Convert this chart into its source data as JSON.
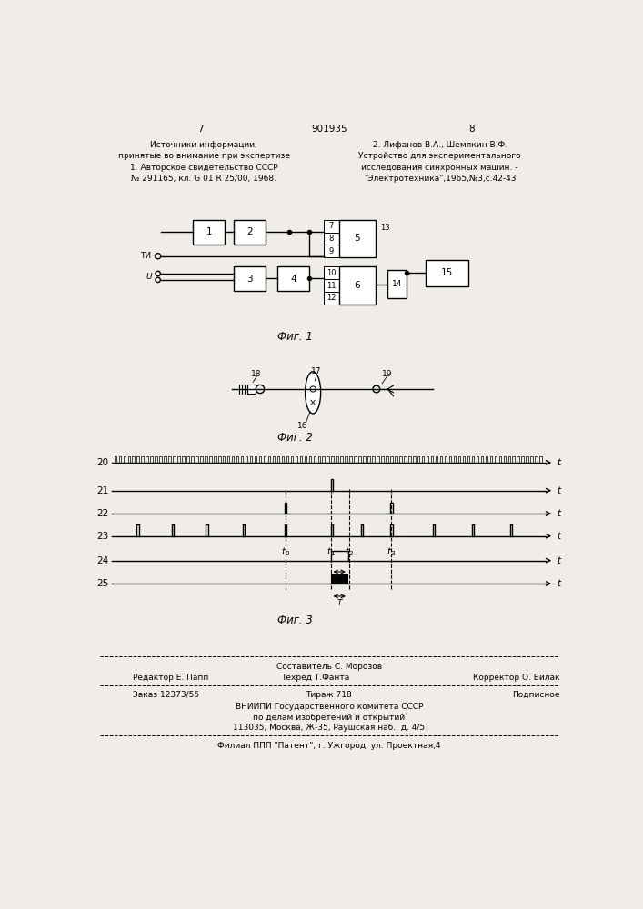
{
  "bg_color": "#f0ede8",
  "page_num_left": "7",
  "page_num_center": "901935",
  "page_num_right": "8",
  "header_left": "Источники информации,\nпринятые во внимание при экспертизе\n1. Авторское свидетельство СССР\n№ 291165, кл. G 01 R 25/00, 1968.",
  "header_right": "2. Лифанов В.А., Шемякин В.Ф.\nУстройство для экспериментального\nисследования синхронных машин. -\n\"Электротехника\",1965,№3,с.42-43",
  "fig1_label": "Фиг. 1",
  "fig2_label": "Фиг. 2",
  "fig3_label": "Фиг. 3",
  "footer_line1": "Составитель С. Морозов",
  "footer_line2_left": "Редактор Е. Папп",
  "footer_line2_mid": "Техред Т.Фанта",
  "footer_line2_right": "Корректор О. Билак",
  "footer_line3_left": "Заказ 12373/55",
  "footer_line3_mid": "Тираж 718",
  "footer_line3_right": "Подписное",
  "footer_line4": "ВНИИПИ Государственного комитета СССР",
  "footer_line5": "по делам изобретений и открытий",
  "footer_line6": "113035, Москва, Ж-35, Раушская наб., д. 4/5",
  "footer_line7": "Филиал ППП \"Патент\", г. Ужгород, ул. Проектная,4"
}
